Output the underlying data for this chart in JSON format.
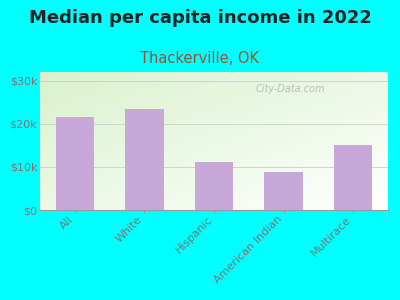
{
  "title": "Median per capita income in 2022",
  "subtitle": "Thackerville, OK",
  "categories": [
    "All",
    "White",
    "Hispanic",
    "American Indian",
    "Multirace"
  ],
  "values": [
    21500,
    23500,
    11200,
    8700,
    15000
  ],
  "bar_color": "#c8a8d8",
  "bg_outer": "#00ffff",
  "title_color": "#222222",
  "subtitle_color": "#a05030",
  "axis_label_color": "#777777",
  "ytick_labels": [
    "$0",
    "$10k",
    "$20k",
    "$30k"
  ],
  "ytick_values": [
    0,
    10000,
    20000,
    30000
  ],
  "ylim": [
    0,
    32000
  ],
  "watermark": "City-Data.com",
  "title_fontsize": 13,
  "subtitle_fontsize": 10.5
}
